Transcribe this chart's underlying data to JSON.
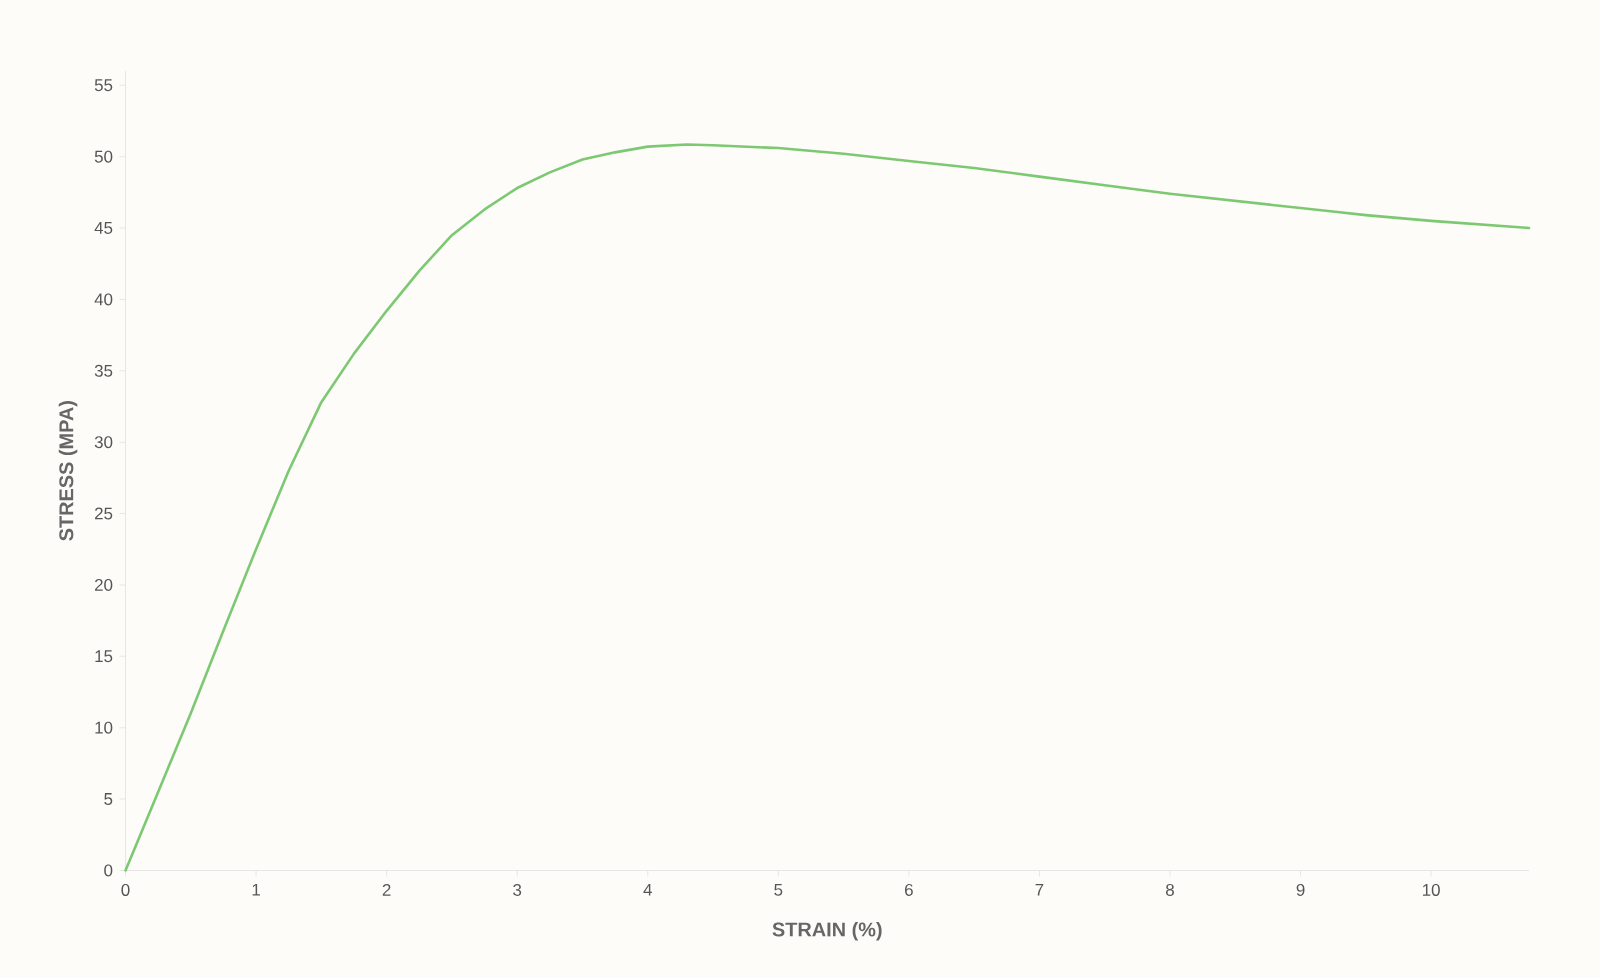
{
  "chart_data": {
    "type": "line",
    "xlabel": "STRAIN (%)",
    "ylabel": "STRESS (MPA)",
    "xlim": [
      0,
      10.75
    ],
    "ylim": [
      0,
      56
    ],
    "xticks": [
      0,
      1,
      2,
      3,
      4,
      5,
      6,
      7,
      8,
      9,
      10
    ],
    "yticks": [
      0,
      5,
      10,
      15,
      20,
      25,
      30,
      35,
      40,
      45,
      50,
      55
    ],
    "marker": "none",
    "line_style": "solid",
    "series": [
      {
        "color": "#7dc873",
        "x": [
          0,
          0.25,
          0.5,
          0.75,
          1.0,
          1.25,
          1.5,
          1.75,
          2.0,
          2.25,
          2.5,
          2.75,
          3.0,
          3.25,
          3.5,
          3.75,
          4.0,
          4.3,
          4.5,
          5.0,
          5.5,
          6.0,
          6.5,
          7.0,
          7.5,
          8.0,
          8.5,
          9.0,
          9.3,
          9.5,
          10.0,
          10.75
        ],
        "values": [
          0,
          5.5,
          11,
          16.8,
          22.5,
          28,
          32.8,
          36.2,
          39.2,
          42,
          44.5,
          46.3,
          47.8,
          48.9,
          49.8,
          50.3,
          50.7,
          50.85,
          50.8,
          50.6,
          50.2,
          49.7,
          49.2,
          48.6,
          48.0,
          47.4,
          46.9,
          46.4,
          46.1,
          45.9,
          45.5,
          45.0
        ]
      }
    ]
  }
}
